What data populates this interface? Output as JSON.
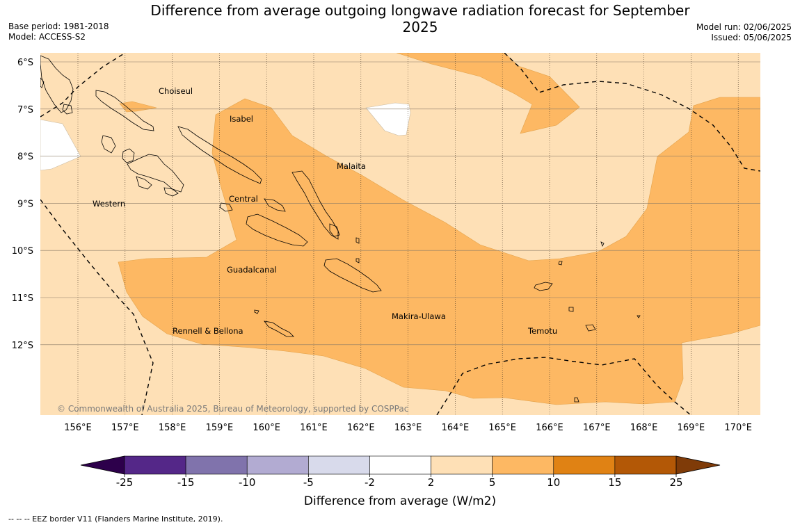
{
  "title": "Difference from average outgoing longwave radiation forecast for September 2025",
  "meta_left": [
    "Base period: 1981-2018",
    "Model: ACCESS-S2"
  ],
  "meta_right": [
    "Model run: 02/06/2025",
    "Issued: 05/06/2025"
  ],
  "map": {
    "lon_ticks": [
      "156°E",
      "157°E",
      "158°E",
      "159°E",
      "160°E",
      "161°E",
      "162°E",
      "163°E",
      "164°E",
      "165°E",
      "166°E",
      "167°E",
      "168°E",
      "169°E",
      "170°E"
    ],
    "lat_ticks": [
      "6°S",
      "7°S",
      "8°S",
      "9°S",
      "10°S",
      "11°S",
      "12°S"
    ],
    "regions": [
      "Choiseul",
      "Isabel",
      "Malaita",
      "Western",
      "Central",
      "Guadalcanal",
      "Makira-Ulawa",
      "Rennell & Bellona",
      "Temotu"
    ],
    "copyright": "© Commonwealth of Australia 2025, Bureau of Meteorology, supported by COSPPac"
  },
  "colorbar": {
    "ticks": [
      "-25",
      "-15",
      "-10",
      "-5",
      "-2",
      "2",
      "5",
      "10",
      "15",
      "25"
    ],
    "colors": [
      "#2d004b",
      "#542788",
      "#8073ac",
      "#b2abd2",
      "#d8daeb",
      "#ffffff",
      "#fee0b6",
      "#fdb863",
      "#e08214",
      "#b35806",
      "#7f3b08"
    ],
    "title": "Difference from average (W/m2)"
  },
  "footnote": "-- -- -- EEZ border V11 (Flanders Marine Institute, 2019)."
}
